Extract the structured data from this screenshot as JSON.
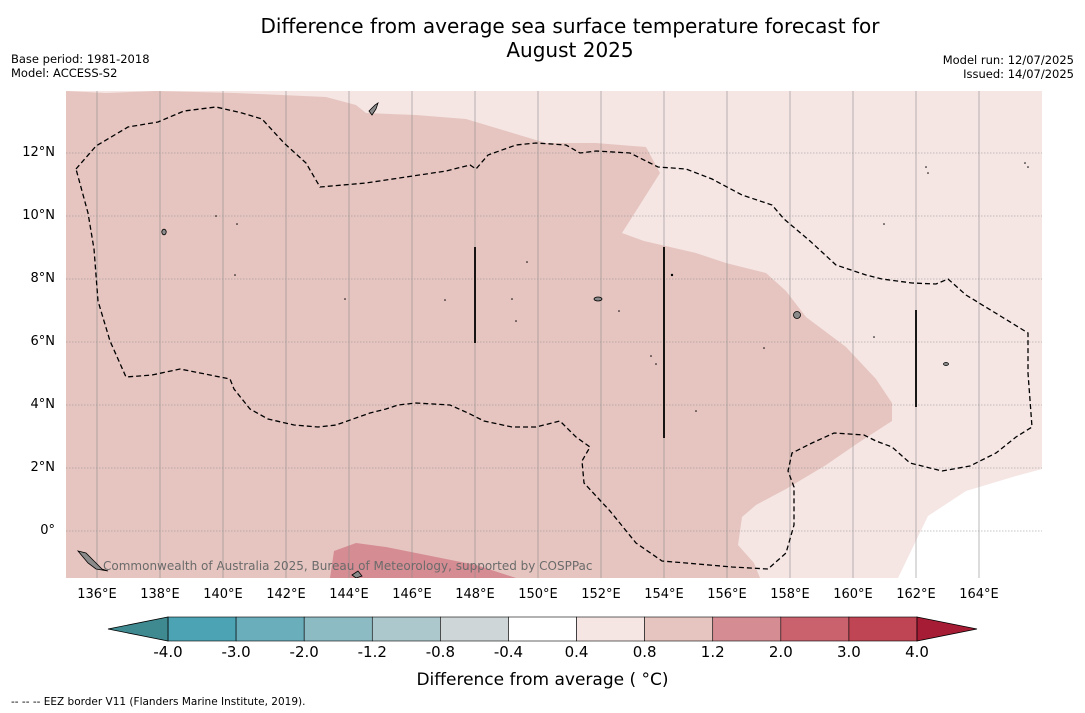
{
  "header": {
    "title_line1": "Difference from average sea surface temperature forecast for",
    "title_line2": "August 2025",
    "base_period": "Base period: 1981-2018",
    "model": "Model: ACCESS-S2",
    "model_run": "Model run: 12/07/2025",
    "issued": "Issued: 14/07/2025"
  },
  "map": {
    "lat_labels": [
      "12°N",
      "10°N",
      "8°N",
      "6°N",
      "4°N",
      "2°N",
      "0°"
    ],
    "lon_labels": [
      "136°E",
      "138°E",
      "140°E",
      "142°E",
      "144°E",
      "146°E",
      "148°E",
      "150°E",
      "152°E",
      "154°E",
      "156°E",
      "158°E",
      "160°E",
      "162°E",
      "164°E"
    ],
    "credit": "Commonwealth of Australia 2025, Bureau of Meteorology, supported by COSPPac",
    "colors": {
      "anomaly_0_4_to_0_8": "#f5e6e4",
      "anomaly_0_8_to_1_2": "#e6c5c0",
      "anomaly_1_2_to_2_0": "#d58c93",
      "land": "#8a8a8a"
    }
  },
  "colorbar": {
    "title": "Difference from average ( °C)",
    "tick_labels": [
      "-4.0",
      "-3.0",
      "-2.0",
      "-1.2",
      "-0.8",
      "-0.4",
      "0.4",
      "0.8",
      "1.2",
      "2.0",
      "3.0",
      "4.0"
    ],
    "colors": [
      "#4ba3b4",
      "#6aadbb",
      "#8cbbc4",
      "#acc8cc",
      "#cfd6d7",
      "#ffffff",
      "#f5e6e4",
      "#e6c5c0",
      "#d58c93",
      "#c9626c",
      "#bf4454"
    ],
    "under_color": "#3f8a90",
    "over_color": "#a71c35"
  },
  "footer": {
    "legend": "--  --  -- EEZ border V11 (Flanders Marine Institute, 2019)."
  }
}
